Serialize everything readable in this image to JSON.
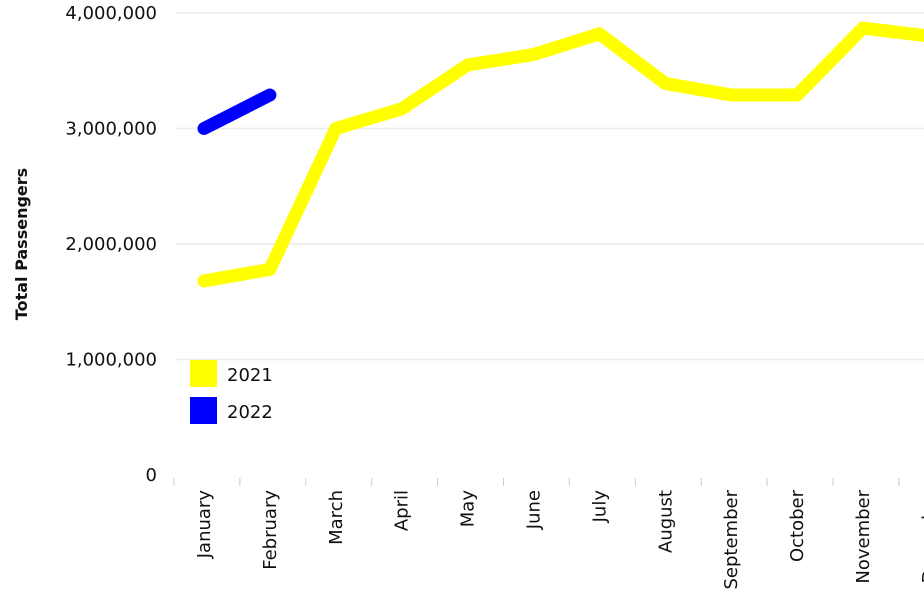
{
  "chart_data": {
    "type": "line",
    "title": "",
    "xlabel": "",
    "ylabel": "Total Passengers",
    "categories": [
      "January",
      "February",
      "March",
      "April",
      "May",
      "June",
      "July",
      "August",
      "September",
      "October",
      "November",
      "December"
    ],
    "ylim": [
      0,
      4000000
    ],
    "yticks": [
      "0",
      "1,000,000",
      "2,000,000",
      "3,000,000",
      "4,000,000"
    ],
    "grid": true,
    "legend_position": "bottom-left",
    "series": [
      {
        "name": "2021",
        "color": "#ffff00",
        "values": [
          1680000,
          1780000,
          3000000,
          3170000,
          3550000,
          3640000,
          3820000,
          3390000,
          3290000,
          3290000,
          3870000,
          3800000
        ]
      },
      {
        "name": "2022",
        "color": "#0000ff",
        "values": [
          3000000,
          3290000,
          null,
          null,
          null,
          null,
          null,
          null,
          null,
          null,
          null,
          null
        ]
      }
    ]
  }
}
